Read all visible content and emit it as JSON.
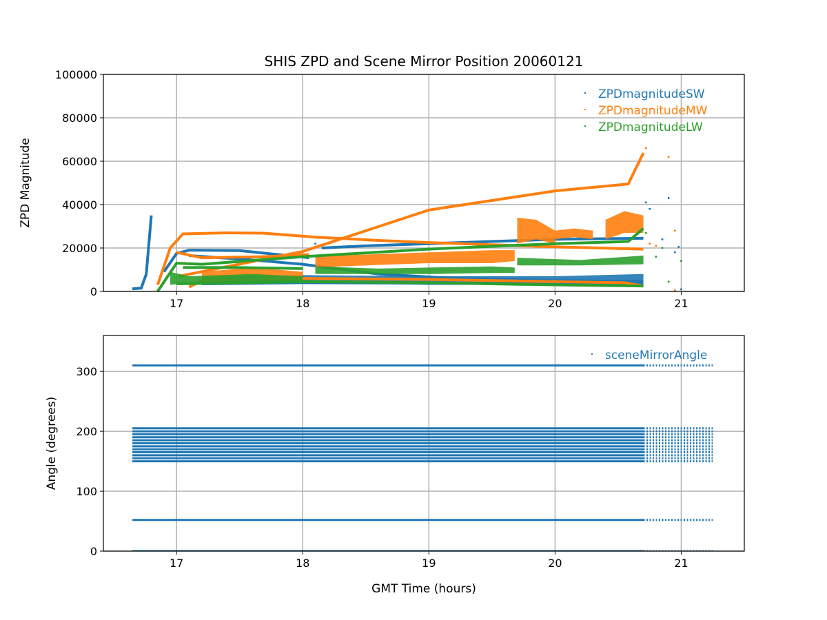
{
  "colors": {
    "sw": "#1f77b4",
    "mw": "#ff7f0e",
    "lw": "#2ca02c",
    "grid": "#b0b0b0"
  },
  "title": "SHIS ZPD and Scene Mirror Position 20060121",
  "chart_data": [
    {
      "type": "scatter",
      "title": "SHIS ZPD and Scene Mirror Position 20060121",
      "xlabel": "",
      "ylabel": "ZPD Magnitude",
      "xlim": [
        16.42,
        21.5
      ],
      "ylim": [
        0,
        100000
      ],
      "xticks": [
        17,
        18,
        19,
        20,
        21
      ],
      "xtick_labels": [
        "17",
        "18",
        "19",
        "20",
        "21"
      ],
      "yticks": [
        0,
        20000,
        40000,
        60000,
        80000,
        100000
      ],
      "ytick_labels": [
        "0",
        "20000",
        "40000",
        "60000",
        "80000",
        "100000"
      ],
      "grid": true,
      "legend_position": "top-right",
      "series": [
        {
          "name": "ZPDmagnitudeSW",
          "color_key": "sw",
          "tracks": [
            {
              "x": [
                16.65,
                16.72,
                16.76,
                16.8
              ],
              "y": [
                1200,
                1500,
                8000,
                35000
              ]
            },
            {
              "x": [
                16.9,
                17.0,
                17.1,
                17.5,
                17.8,
                18.05
              ],
              "y": [
                9000,
                17500,
                19000,
                18800,
                17000,
                15500
              ]
            },
            {
              "x": [
                18.15,
                18.5,
                19.0,
                19.5,
                20.0,
                20.7
              ],
              "y": [
                20000,
                21000,
                22000,
                23000,
                24000,
                24500
              ]
            },
            {
              "x": [
                17.1,
                17.6,
                18.0,
                18.6,
                19.2,
                20.0,
                20.7
              ],
              "y": [
                16500,
                14500,
                12500,
                8000,
                6000,
                5000,
                4500
              ]
            },
            {
              "x": [
                17.2,
                18.0,
                19.0,
                20.0,
                20.7
              ],
              "y": [
                3500,
                4000,
                3800,
                3500,
                3000
              ]
            }
          ],
          "bands": [
            {
              "x": [
                17.2,
                18.0,
                19.0,
                20.0,
                20.7
              ],
              "lo": [
                3000,
                4000,
                3000,
                3000,
                3000
              ],
              "hi": [
                7000,
                7500,
                7000,
                7000,
                8000
              ]
            }
          ],
          "outliers": [
            [
              18.1,
              22000
            ],
            [
              18.12,
              25000
            ],
            [
              20.72,
              41000
            ],
            [
              20.75,
              38000
            ],
            [
              20.85,
              24000
            ],
            [
              20.9,
              43000
            ],
            [
              20.95,
              18000
            ],
            [
              20.98,
              20500
            ],
            [
              21.0,
              1000
            ]
          ]
        },
        {
          "name": "ZPDmagnitudeMW",
          "color_key": "mw",
          "tracks": [
            {
              "x": [
                17.02,
                18.0,
                19.0,
                20.0,
                20.58,
                20.7
              ],
              "y": [
                7000,
                18400,
                37500,
                46300,
                49500,
                63800
              ]
            },
            {
              "x": [
                16.85,
                16.95,
                17.05,
                17.4,
                17.7,
                18.1,
                18.6,
                19.0,
                20.0,
                20.7
              ],
              "y": [
                3000,
                20000,
                26500,
                27000,
                26800,
                25000,
                23500,
                22500,
                20500,
                19500
              ]
            },
            {
              "x": [
                17.0,
                17.2,
                17.7,
                18.05
              ],
              "y": [
                18000,
                15500,
                16000,
                17000
              ]
            },
            {
              "x": [
                17.1,
                17.2,
                18.0,
                19.0,
                20.0,
                20.55,
                20.7
              ],
              "y": [
                2000,
                5000,
                6000,
                5500,
                4500,
                4000,
                2500
              ]
            }
          ],
          "bands": [
            {
              "x": [
                17.2,
                17.6,
                18.0
              ],
              "lo": [
                6000,
                7000,
                5500
              ],
              "hi": [
                9000,
                11000,
                9000
              ]
            },
            {
              "x": [
                18.1,
                18.5,
                19.0,
                19.5,
                19.68
              ],
              "lo": [
                11000,
                12000,
                13000,
                13000,
                14000
              ],
              "hi": [
                16000,
                17000,
                18000,
                19000,
                19000
              ]
            },
            {
              "x": [
                19.7,
                19.85,
                20.0
              ],
              "lo": [
                22000,
                24000,
                22000
              ],
              "hi": [
                34000,
                33000,
                28000
              ]
            },
            {
              "x": [
                20.0,
                20.15,
                20.3
              ],
              "lo": [
                24000,
                25000,
                24000
              ],
              "hi": [
                28000,
                29000,
                28000
              ]
            },
            {
              "x": [
                20.4,
                20.55,
                20.7
              ],
              "lo": [
                24000,
                27000,
                27000
              ],
              "hi": [
                33000,
                37000,
                35000
              ]
            }
          ],
          "outliers": [
            [
              20.72,
              66000
            ],
            [
              20.9,
              62000
            ],
            [
              20.75,
              22000
            ],
            [
              20.8,
              21000
            ],
            [
              20.95,
              28000
            ],
            [
              20.95,
              500
            ]
          ]
        },
        {
          "name": "ZPDmagnitudeLW",
          "color_key": "lw",
          "tracks": [
            {
              "x": [
                16.85,
                17.0,
                17.2,
                18.0,
                19.0,
                20.0,
                20.58,
                20.7
              ],
              "y": [
                0,
                13000,
                12500,
                16000,
                19500,
                22000,
                23000,
                29000
              ]
            },
            {
              "x": [
                17.05,
                17.5,
                18.0
              ],
              "y": [
                11000,
                11000,
                10500
              ]
            },
            {
              "x": [
                17.0,
                18.0,
                19.0,
                20.0,
                20.7
              ],
              "y": [
                3500,
                4500,
                4000,
                3000,
                2500
              ]
            }
          ],
          "bands": [
            {
              "x": [
                16.95,
                17.1,
                17.6,
                18.0
              ],
              "lo": [
                3000,
                4000,
                4000,
                4000
              ],
              "hi": [
                9000,
                7000,
                8000,
                7000
              ]
            },
            {
              "x": [
                18.1,
                18.6,
                19.0,
                19.5,
                19.68
              ],
              "lo": [
                8000,
                8000,
                8000,
                8500,
                8500
              ],
              "hi": [
                11500,
                10500,
                11000,
                11500,
                11000
              ]
            },
            {
              "x": [
                19.7,
                20.2,
                20.7
              ],
              "lo": [
                12000,
                12000,
                12500
              ],
              "hi": [
                15500,
                14500,
                16500
              ]
            }
          ],
          "outliers": [
            [
              20.72,
              27000
            ],
            [
              20.85,
              20000
            ],
            [
              20.9,
              4500
            ],
            [
              21.0,
              14000
            ],
            [
              20.8,
              16000
            ]
          ]
        }
      ]
    },
    {
      "type": "scatter",
      "title": "",
      "xlabel": "GMT Time (hours)",
      "ylabel": "Angle (degrees)",
      "xlim": [
        16.42,
        21.5
      ],
      "ylim": [
        0,
        360
      ],
      "xticks": [
        17,
        18,
        19,
        20,
        21
      ],
      "xtick_labels": [
        "17",
        "18",
        "19",
        "20",
        "21"
      ],
      "yticks": [
        0,
        100,
        200,
        300
      ],
      "ytick_labels": [
        "0",
        "100",
        "200",
        "300"
      ],
      "grid": true,
      "legend_position": "top-right",
      "series": [
        {
          "name": "sceneMirrorAngle",
          "color_key": "sw",
          "dense_range": [
            16.65,
            20.7
          ],
          "sparse_range": [
            20.7,
            21.25
          ],
          "angle_levels": [
            0,
            52,
            150,
            155,
            160,
            165,
            170,
            175,
            180,
            185,
            190,
            195,
            200,
            205,
            310
          ]
        }
      ]
    }
  ]
}
